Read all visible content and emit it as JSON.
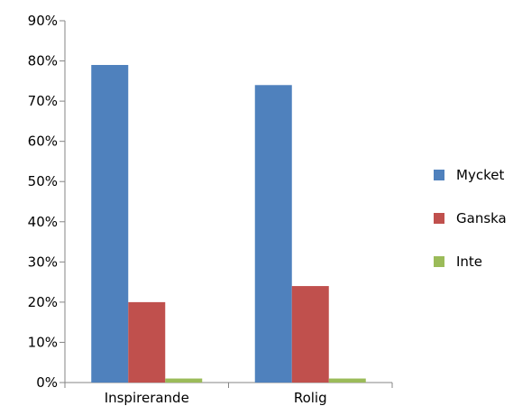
{
  "chart_data": {
    "type": "bar",
    "categories": [
      "Inspirerande",
      "Rolig"
    ],
    "series": [
      {
        "name": "Mycket",
        "color": "#4F81BD",
        "values": [
          79,
          74
        ]
      },
      {
        "name": "Ganska",
        "color": "#C0504D",
        "values": [
          20,
          24
        ]
      },
      {
        "name": "Inte",
        "color": "#9BBB59",
        "values": [
          1,
          1
        ]
      }
    ],
    "ylim": [
      0,
      90
    ],
    "yticks": [
      0,
      10,
      20,
      30,
      40,
      50,
      60,
      70,
      80,
      90
    ],
    "ytick_labels": [
      "0%",
      "10%",
      "20%",
      "30%",
      "40%",
      "50%",
      "60%",
      "70%",
      "80%",
      "90%"
    ],
    "grid": false,
    "legend_position": "right"
  }
}
